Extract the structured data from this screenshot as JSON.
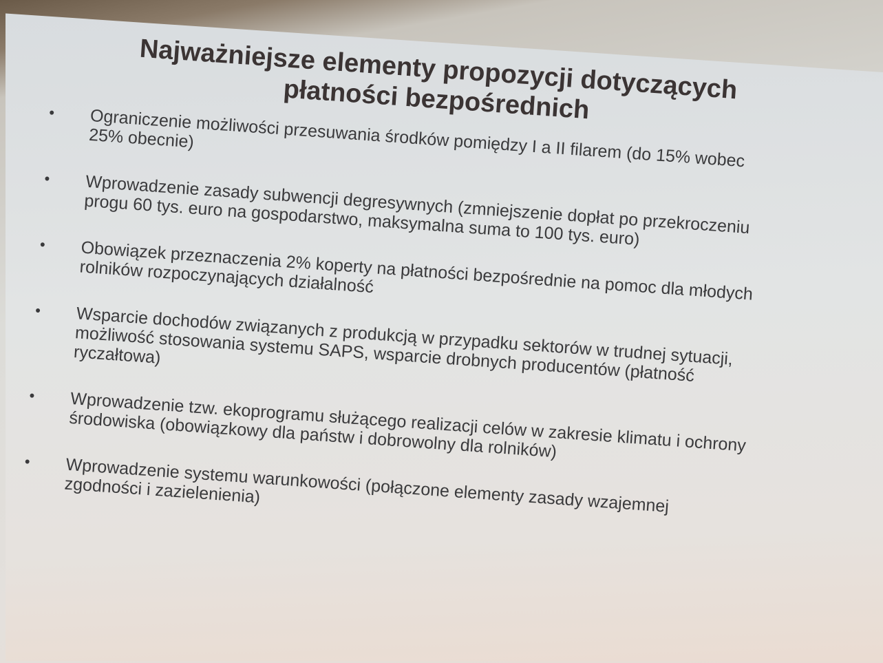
{
  "slide": {
    "title": [
      "Najważniejsze elementy propozycji dotyczących",
      "płatności bezpośrednich"
    ],
    "bullets": [
      [
        "Ograniczenie możliwości przesuwania środków pomiędzy I a II filarem (do 15% wobec",
        "25% obecnie)"
      ],
      [
        "Wprowadzenie zasady subwencji degresywnych (zmniejszenie dopłat po przekroczeniu",
        "progu 60 tys. euro na gospodarstwo, maksymalna suma to 100 tys. euro)"
      ],
      [
        "Obowiązek przeznaczenia 2% koperty na płatności bezpośrednie na pomoc dla młodych",
        "rolników rozpoczynających działalność"
      ],
      [
        "Wsparcie dochodów związanych z produkcją w przypadku sektorów w trudnej sytuacji,",
        "możliwość stosowania systemu SAPS, wsparcie drobnych producentów (płatność",
        "ryczałtowa)"
      ],
      [
        "Wprowadzenie tzw. ekoprogramu służącego realizacji celów w zakresie klimatu i ochrony",
        "środowiska (obowiązkowy dla państw i dobrowolny dla rolników)"
      ],
      [
        "Wprowadzenie systemu warunkowości (połączone elementy zasady wzajemnej",
        "zgodności i zazielenienia)"
      ]
    ]
  }
}
